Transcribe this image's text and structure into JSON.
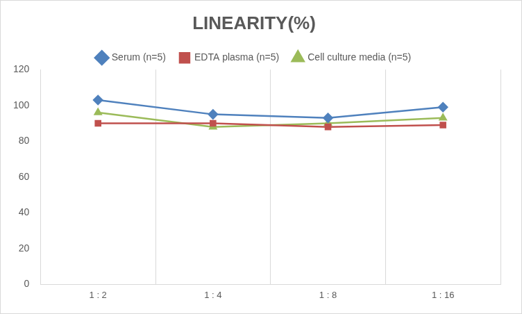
{
  "chart_data": {
    "type": "line",
    "title": "LINEARITY(%)",
    "categories": [
      "1 : 2",
      "1 : 4",
      "1 : 8",
      "1 : 16"
    ],
    "series": [
      {
        "name": "Serum (n=5)",
        "color": "#4f81bd",
        "marker": "diamond",
        "values": [
          103,
          95,
          93,
          99
        ]
      },
      {
        "name": "EDTA plasma (n=5)",
        "color": "#c0504d",
        "marker": "square",
        "values": [
          90,
          90,
          88,
          89
        ]
      },
      {
        "name": "Cell culture media (n=5)",
        "color": "#9bbb59",
        "marker": "triangle",
        "values": [
          96,
          88,
          90,
          93
        ]
      }
    ],
    "ylim": [
      0,
      120
    ],
    "yticks": [
      0,
      20,
      40,
      60,
      80,
      100,
      120
    ],
    "grid": true,
    "legend": "top"
  }
}
